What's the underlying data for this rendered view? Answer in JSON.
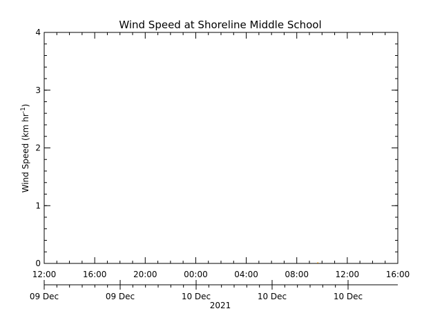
{
  "chart_data": {
    "type": "line",
    "title": "Wind Speed at Shoreline Middle School",
    "ylabel_main": "Wind Speed (km hr",
    "ylabel_sup": "-1",
    "ylabel_close": ")",
    "xlabel": "2021",
    "ylim": [
      0,
      4
    ],
    "yticks": [
      "0",
      "1",
      "2",
      "3",
      "4"
    ],
    "xlim": [
      "2021-12-09T12:00",
      "2021-12-10T16:00"
    ],
    "xticks": [
      "12:00",
      "16:00",
      "20:00",
      "00:00",
      "04:00",
      "08:00",
      "12:00",
      "16:00"
    ],
    "date_ticks": [
      "09 Dec",
      "09 Dec",
      "10 Dec",
      "10 Dec",
      "10 Dec"
    ],
    "grid": false,
    "series": [
      {
        "color": "#ffa500",
        "x": [
          "2021-12-10T09:40"
        ],
        "y": [
          0
        ]
      }
    ]
  }
}
